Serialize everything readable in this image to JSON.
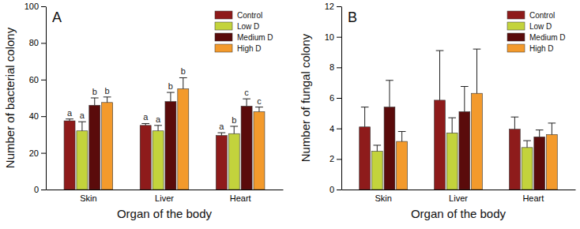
{
  "chart_data": [
    {
      "type": "bar",
      "title": "A",
      "xlabel": "Organ of the body",
      "ylabel": "Number of bacterial colony",
      "categories": [
        "Skin",
        "Liver",
        "Heart"
      ],
      "series": [
        {
          "name": "Control",
          "color": "#8e1b1b",
          "values": [
            37.5,
            35,
            29.5
          ],
          "error": [
            1,
            1,
            1.5
          ],
          "annotations": [
            "a",
            "a",
            "a"
          ]
        },
        {
          "name": "Low D",
          "color": "#c3d33c",
          "values": [
            32,
            32,
            30.5
          ],
          "error": [
            5,
            3,
            4
          ],
          "annotations": [
            "a",
            "a",
            "b"
          ]
        },
        {
          "name": "Medium D",
          "color": "#5a0b0b",
          "values": [
            46,
            48,
            45.5
          ],
          "error": [
            4,
            5,
            4
          ],
          "annotations": [
            "b",
            "b",
            "c"
          ]
        },
        {
          "name": "High D",
          "color": "#f39a2c",
          "values": [
            47.5,
            55,
            42.5
          ],
          "error": [
            3,
            6,
            2.5
          ],
          "annotations": [
            "b",
            "b",
            "c"
          ]
        }
      ],
      "ylim": [
        0,
        100
      ],
      "yticks": [
        0,
        20,
        40,
        60,
        80,
        100
      ],
      "grid": false,
      "legend": "upper right"
    },
    {
      "type": "bar",
      "title": "B",
      "xlabel": "Organ of the body",
      "ylabel": "Number of fungal colony",
      "categories": [
        "Skin",
        "Liver",
        "Heart"
      ],
      "series": [
        {
          "name": "Control",
          "color": "#8e1b1b",
          "values": [
            4.1,
            5.85,
            3.95
          ],
          "error": [
            1.3,
            3.25,
            0.8
          ]
        },
        {
          "name": "Low D",
          "color": "#c3d33c",
          "values": [
            2.5,
            3.7,
            2.75
          ],
          "error": [
            0.4,
            1.0,
            0.45
          ]
        },
        {
          "name": "Medium D",
          "color": "#5a0b0b",
          "values": [
            5.4,
            5.1,
            3.45
          ],
          "error": [
            1.75,
            1.65,
            0.45
          ]
        },
        {
          "name": "High D",
          "color": "#f39a2c",
          "values": [
            3.15,
            6.3,
            3.6
          ],
          "error": [
            0.65,
            2.9,
            0.75
          ]
        }
      ],
      "ylim": [
        0,
        12
      ],
      "yticks": [
        0,
        2,
        4,
        6,
        8,
        10,
        12
      ],
      "grid": false,
      "legend": "upper right"
    }
  ]
}
